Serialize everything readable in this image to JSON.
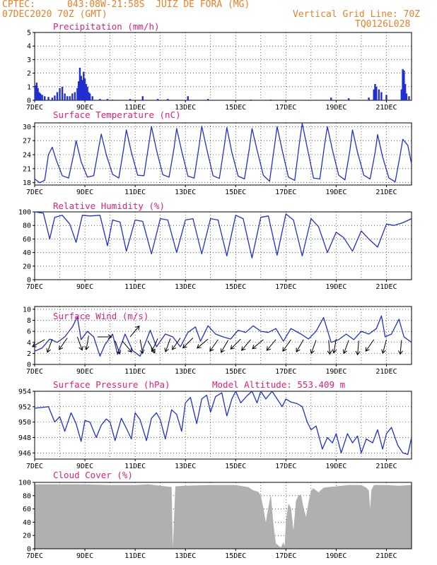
{
  "header": {
    "source": "CPTEC:",
    "location": "043:08W-21:58S  JUIZ DE FORA (MG)",
    "run": "07DEC2020 70Z (GMT)",
    "grid_line": "Vertical Grid Line: 70Z",
    "model": "TQ0126L028"
  },
  "colors": {
    "header": "#e8822a",
    "title": "#e0207a",
    "line": "#2030d0",
    "bar": "#2030d0",
    "cloud": "#b0b0b0"
  },
  "chart_data": [
    {
      "type": "bar",
      "title": "Precipitation (mm/h)",
      "ylim": [
        0,
        5
      ],
      "yticks": [
        0,
        1,
        2,
        3,
        4,
        5
      ],
      "xticks": [
        "7DEC",
        "9DEC",
        "11DEC",
        "13DEC",
        "15DEC",
        "17DEC",
        "19DEC",
        "21DEC"
      ],
      "xlim_days": [
        7,
        22
      ],
      "x": [
        7.03,
        7.08,
        7.13,
        7.18,
        7.23,
        7.3,
        7.4,
        7.55,
        7.7,
        7.8,
        7.9,
        8.0,
        8.1,
        8.2,
        8.3,
        8.4,
        8.5,
        8.6,
        8.7,
        8.75,
        8.8,
        8.85,
        8.9,
        8.95,
        9.0,
        9.05,
        9.1,
        9.15,
        9.2,
        9.3,
        9.6,
        9.9,
        10.1,
        10.8,
        11.3,
        11.9,
        12.3,
        13.1,
        13.9,
        15.6,
        16.4,
        18.8,
        19.5,
        20.3,
        20.5,
        20.55,
        20.6,
        20.7,
        20.8,
        21.0,
        21.6,
        21.65,
        21.7,
        21.75,
        21.8,
        21.9
      ],
      "values": [
        1.1,
        1.3,
        0.9,
        0.6,
        0.5,
        0.4,
        0.3,
        0.25,
        0.2,
        0.35,
        0.6,
        0.9,
        1.0,
        0.5,
        0.3,
        0.3,
        0.5,
        0.6,
        0.9,
        1.4,
        2.4,
        1.8,
        1.5,
        2.1,
        1.6,
        1.2,
        1.0,
        0.6,
        0.5,
        0.3,
        0.1,
        0.1,
        0.05,
        0.1,
        0.3,
        0.1,
        0.1,
        0.3,
        0.1,
        0.05,
        0.05,
        0.2,
        0.15,
        0.2,
        0.8,
        1.2,
        1.0,
        0.8,
        0.6,
        0.4,
        0.8,
        2.3,
        2.2,
        1.2,
        0.5,
        0.3
      ]
    },
    {
      "type": "line",
      "title": "Surface Temperature (nC)",
      "ylim": [
        17.5,
        30.8
      ],
      "yticks": [
        18,
        21,
        24,
        27,
        30
      ],
      "xticks": [
        "7DEC",
        "9DEC",
        "11DEC",
        "13DEC",
        "15DEC",
        "17DEC",
        "19DEC",
        "21DEC"
      ],
      "xlim_days": [
        7,
        22
      ],
      "x": [
        7.0,
        7.2,
        7.4,
        7.55,
        7.7,
        7.85,
        8.1,
        8.35,
        8.55,
        8.65,
        8.85,
        9.1,
        9.35,
        9.55,
        9.65,
        9.85,
        10.1,
        10.35,
        10.55,
        10.65,
        10.85,
        11.1,
        11.35,
        11.55,
        11.65,
        11.85,
        12.1,
        12.35,
        12.55,
        12.65,
        12.85,
        13.1,
        13.35,
        13.55,
        13.65,
        13.85,
        14.1,
        14.35,
        14.55,
        14.65,
        14.85,
        15.1,
        15.35,
        15.55,
        15.65,
        15.85,
        16.1,
        16.35,
        16.55,
        16.65,
        16.85,
        17.1,
        17.35,
        17.55,
        17.65,
        17.85,
        18.1,
        18.35,
        18.55,
        18.65,
        18.85,
        19.1,
        19.35,
        19.55,
        19.65,
        19.85,
        20.1,
        20.35,
        20.55,
        20.65,
        20.85,
        21.1,
        21.35,
        21.55,
        21.65,
        21.85,
        22.0
      ],
      "values": [
        18.8,
        18.0,
        18.5,
        24.0,
        25.6,
        23.0,
        19.5,
        19.0,
        24.0,
        27.0,
        22.5,
        19.2,
        19.5,
        25.5,
        28.4,
        24.0,
        19.8,
        19.0,
        25.5,
        29.3,
        24.5,
        19.6,
        19.5,
        26.5,
        30.0,
        25.0,
        19.7,
        19.2,
        25.5,
        29.6,
        24.8,
        19.4,
        19.0,
        26.0,
        30.1,
        25.2,
        19.5,
        18.9,
        26.0,
        29.8,
        24.5,
        19.4,
        18.8,
        25.5,
        29.6,
        25.0,
        19.6,
        18.3,
        26.0,
        30.0,
        25.0,
        19.2,
        18.5,
        27.0,
        30.7,
        25.5,
        19.0,
        18.8,
        26.5,
        30.0,
        25.0,
        19.6,
        18.6,
        25.0,
        29.3,
        24.5,
        19.6,
        18.8,
        24.5,
        28.3,
        23.5,
        19.0,
        18.2,
        24.0,
        27.3,
        26.0,
        22.0
      ]
    },
    {
      "type": "line",
      "title": "Relative Humidity (%)",
      "ylim": [
        0,
        100
      ],
      "yticks": [
        0,
        20,
        40,
        60,
        80,
        100
      ],
      "xticks": [
        "7DEC",
        "9DEC",
        "11DEC",
        "13DEC",
        "15DEC",
        "17DEC",
        "19DEC",
        "21DEC"
      ],
      "xlim_days": [
        7,
        22
      ],
      "x": [
        7.0,
        7.35,
        7.6,
        7.8,
        8.1,
        8.4,
        8.65,
        8.9,
        9.2,
        9.6,
        9.9,
        10.1,
        10.4,
        10.65,
        11.0,
        11.3,
        11.65,
        12.0,
        12.3,
        12.65,
        13.0,
        13.3,
        13.65,
        14.0,
        14.3,
        14.65,
        15.0,
        15.3,
        15.65,
        16.0,
        16.3,
        16.65,
        17.0,
        17.3,
        17.65,
        18.0,
        18.3,
        18.65,
        19.0,
        19.3,
        19.65,
        20.0,
        20.3,
        20.65,
        21.0,
        21.3,
        21.65,
        22.0
      ],
      "values": [
        100,
        98,
        60,
        92,
        95,
        82,
        55,
        95,
        94,
        95,
        50,
        88,
        85,
        42,
        88,
        86,
        38,
        90,
        88,
        40,
        88,
        90,
        38,
        90,
        88,
        35,
        95,
        90,
        32,
        92,
        94,
        36,
        97,
        88,
        35,
        90,
        78,
        40,
        70,
        62,
        42,
        72,
        60,
        48,
        82,
        80,
        84,
        90
      ]
    },
    {
      "type": "line",
      "title": "Surface Wind (m/s)",
      "ylim": [
        0,
        10.5
      ],
      "yticks": [
        0,
        2,
        4,
        6,
        8,
        10
      ],
      "xticks": [
        "7DEC",
        "9DEC",
        "11DEC",
        "13DEC",
        "15DEC",
        "17DEC",
        "19DEC",
        "21DEC"
      ],
      "xlim_days": [
        7,
        22
      ],
      "x": [
        7.0,
        7.3,
        7.6,
        7.9,
        8.2,
        8.5,
        8.7,
        8.85,
        9.1,
        9.35,
        9.6,
        9.8,
        10.1,
        10.3,
        10.6,
        10.9,
        11.2,
        11.6,
        11.85,
        12.2,
        12.5,
        12.8,
        13.1,
        13.4,
        13.6,
        13.9,
        14.2,
        14.5,
        14.8,
        15.1,
        15.4,
        15.7,
        16.0,
        16.3,
        16.6,
        16.9,
        17.2,
        17.6,
        17.9,
        18.2,
        18.5,
        18.8,
        19.1,
        19.4,
        19.7,
        20.0,
        20.3,
        20.6,
        20.8,
        20.95,
        21.2,
        21.5,
        21.7,
        22.0
      ],
      "values": [
        2.4,
        3.0,
        4.6,
        4.0,
        5.0,
        6.8,
        8.6,
        4.5,
        6.0,
        5.0,
        1.5,
        3.6,
        5.5,
        1.8,
        5.5,
        2.5,
        1.5,
        6.2,
        3.2,
        5.5,
        5.0,
        3.2,
        5.8,
        6.8,
        4.2,
        7.0,
        5.5,
        5.0,
        4.6,
        6.2,
        5.8,
        7.0,
        6.0,
        5.8,
        6.5,
        4.2,
        6.5,
        5.5,
        4.6,
        6.0,
        8.5,
        4.0,
        4.5,
        5.5,
        4.5,
        6.0,
        5.5,
        6.5,
        8.8,
        5.0,
        5.5,
        8.2,
        5.0,
        4.0
      ],
      "arrows": [
        [
          7.4,
          4.5,
          240
        ],
        [
          7.7,
          4.6,
          200
        ],
        [
          8.3,
          4.8,
          215
        ],
        [
          8.7,
          5.0,
          160
        ],
        [
          9.15,
          5.2,
          190
        ],
        [
          9.5,
          5.0,
          90
        ],
        [
          10.2,
          4.3,
          160
        ],
        [
          10.5,
          4.2,
          140
        ],
        [
          10.8,
          5.0,
          40
        ],
        [
          11.2,
          4.5,
          170
        ],
        [
          11.5,
          4.3,
          150
        ],
        [
          11.9,
          4.7,
          205
        ],
        [
          12.4,
          4.7,
          200
        ],
        [
          12.8,
          4.8,
          215
        ],
        [
          13.3,
          4.8,
          225
        ],
        [
          13.9,
          4.6,
          230
        ],
        [
          14.3,
          4.5,
          215
        ],
        [
          14.7,
          4.4,
          210
        ],
        [
          15.2,
          4.6,
          225
        ],
        [
          15.6,
          4.5,
          220
        ],
        [
          16.1,
          4.5,
          230
        ],
        [
          16.6,
          4.5,
          220
        ],
        [
          17.2,
          4.5,
          215
        ],
        [
          17.7,
          4.5,
          210
        ],
        [
          18.2,
          4.4,
          200
        ],
        [
          18.7,
          4.4,
          175
        ],
        [
          19.0,
          4.6,
          190
        ],
        [
          19.5,
          4.4,
          200
        ],
        [
          19.9,
          4.3,
          185
        ],
        [
          20.5,
          4.5,
          215
        ],
        [
          21.0,
          4.5,
          195
        ],
        [
          21.6,
          4.4,
          185
        ]
      ]
    },
    {
      "type": "line",
      "title": "Surface Pressure (hPa)",
      "subtitle": "Model Altitude: 553.409 m",
      "ylim": [
        945.2,
        954
      ],
      "yticks": [
        946,
        948,
        950,
        952,
        954
      ],
      "xticks": [
        "7DEC",
        "9DEC",
        "11DEC",
        "13DEC",
        "15DEC",
        "17DEC",
        "19DEC",
        "21DEC"
      ],
      "xlim_days": [
        7,
        22
      ],
      "x": [
        7.0,
        7.3,
        7.55,
        7.8,
        8.0,
        8.2,
        8.45,
        8.65,
        8.85,
        9.0,
        9.2,
        9.45,
        9.65,
        9.85,
        10.0,
        10.2,
        10.45,
        10.65,
        10.85,
        11.0,
        11.2,
        11.45,
        11.65,
        11.85,
        12.0,
        12.2,
        12.45,
        12.65,
        12.85,
        13.0,
        13.2,
        13.45,
        13.65,
        13.85,
        14.0,
        14.2,
        14.45,
        14.65,
        14.85,
        15.0,
        15.2,
        15.45,
        15.65,
        15.85,
        16.0,
        16.2,
        16.45,
        16.65,
        16.85,
        17.0,
        17.2,
        17.45,
        17.65,
        17.85,
        18.0,
        18.2,
        18.45,
        18.65,
        18.85,
        19.0,
        19.2,
        19.45,
        19.65,
        19.85,
        20.0,
        20.2,
        20.45,
        20.65,
        20.85,
        21.0,
        21.2,
        21.45,
        21.65,
        21.85,
        22.0
      ],
      "values": [
        951.8,
        951.9,
        952.0,
        950.0,
        950.7,
        948.8,
        951.2,
        949.8,
        947.5,
        950.2,
        950.0,
        948.0,
        949.6,
        950.4,
        950.0,
        947.6,
        950.5,
        949.2,
        947.8,
        951.2,
        950.3,
        947.6,
        950.5,
        951.2,
        950.3,
        947.8,
        951.6,
        951.0,
        948.8,
        952.5,
        953.2,
        949.8,
        953.0,
        953.5,
        951.3,
        953.3,
        953.8,
        950.8,
        953.0,
        954.0,
        952.5,
        953.4,
        954.0,
        952.5,
        954.0,
        953.0,
        954.0,
        953.0,
        952.0,
        953.0,
        952.6,
        952.4,
        952.0,
        950.0,
        949.0,
        949.5,
        946.5,
        948.0,
        947.3,
        948.5,
        946.0,
        948.5,
        947.3,
        948.2,
        946.0,
        947.8,
        947.3,
        949.0,
        946.5,
        948.5,
        949.3,
        947.0,
        946.0,
        945.8,
        948.0
      ]
    },
    {
      "type": "area",
      "title": "Cloud Cover (%)",
      "ylim": [
        0,
        100
      ],
      "yticks": [
        0,
        20,
        40,
        60,
        80,
        100
      ],
      "xticks": [
        "7DEC",
        "9DEC",
        "11DEC",
        "13DEC",
        "15DEC",
        "17DEC",
        "19DEC",
        "21DEC"
      ],
      "xlim_days": [
        7,
        22
      ],
      "x": [
        7.0,
        8.0,
        9.0,
        10.0,
        11.0,
        11.5,
        12.0,
        12.45,
        12.5,
        12.6,
        13.0,
        14.0,
        15.0,
        15.5,
        15.7,
        15.9,
        16.0,
        16.1,
        16.2,
        16.3,
        16.4,
        16.5,
        16.6,
        16.8,
        16.9,
        16.95,
        17.0,
        17.1,
        17.2,
        17.3,
        17.4,
        17.5,
        17.6,
        17.7,
        17.8,
        17.9,
        18.0,
        18.1,
        18.3,
        18.5,
        18.7,
        19.0,
        19.5,
        20.0,
        20.2,
        20.3,
        20.35,
        20.4,
        20.5,
        21.0,
        21.5,
        22.0
      ],
      "values": [
        97,
        97,
        97,
        96,
        96,
        97,
        95,
        93,
        2,
        94,
        95,
        96,
        96,
        93,
        88,
        86,
        80,
        62,
        40,
        62,
        82,
        38,
        8,
        2,
        10,
        4,
        42,
        68,
        62,
        28,
        72,
        80,
        82,
        62,
        48,
        70,
        88,
        91,
        85,
        92,
        93,
        94,
        96,
        96,
        92,
        88,
        60,
        88,
        96,
        96,
        95,
        96
      ]
    }
  ]
}
